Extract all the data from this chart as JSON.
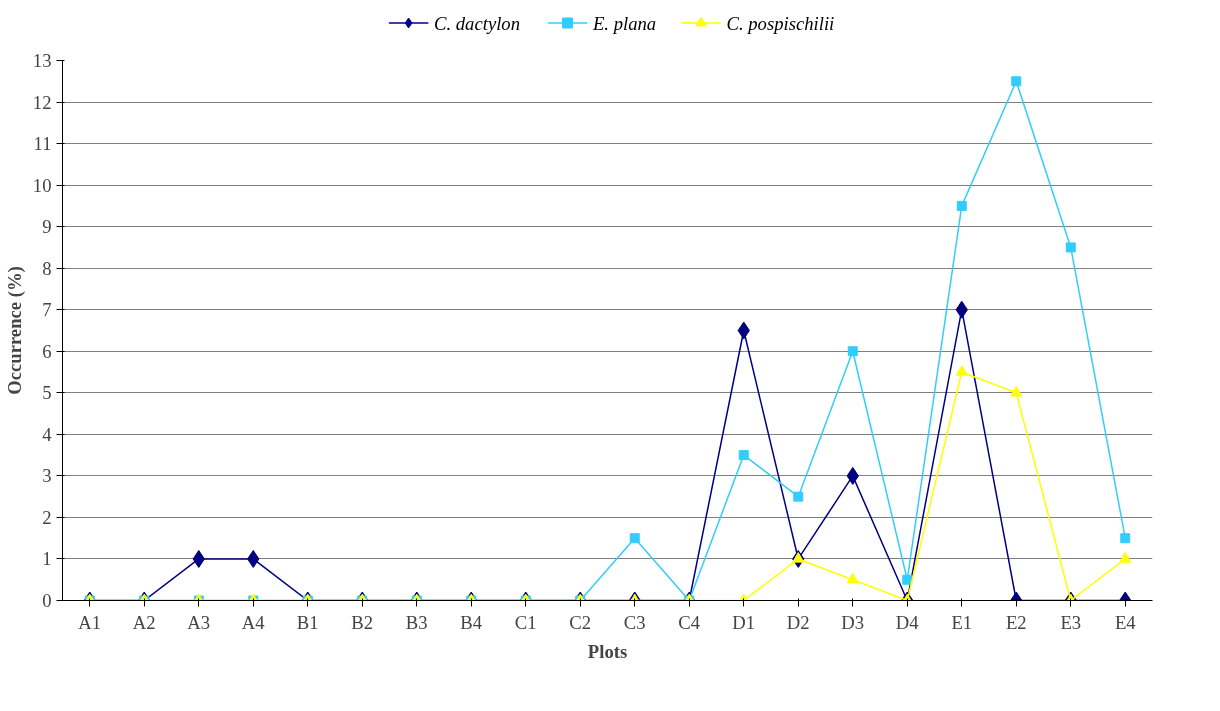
{
  "chart_data": {
    "type": "line",
    "xlabel": "Plots",
    "ylabel": "Occurrence (%)",
    "categories": [
      "A1",
      "A2",
      "A3",
      "A4",
      "B1",
      "B2",
      "B3",
      "B4",
      "C1",
      "C2",
      "C3",
      "C4",
      "D1",
      "D2",
      "D3",
      "D4",
      "E1",
      "E2",
      "E3",
      "E4"
    ],
    "series": [
      {
        "name": "C. dactylon",
        "color": "#000080",
        "marker": "diamond",
        "values": [
          0,
          0,
          1,
          1,
          0,
          0,
          0,
          0,
          0,
          0,
          0,
          0,
          6.5,
          1,
          3,
          0,
          7,
          0,
          0,
          0
        ]
      },
      {
        "name": "E. plana",
        "color": "#33ccff",
        "marker": "square",
        "values": [
          0,
          0,
          0,
          0,
          0,
          0,
          0,
          0,
          0,
          0,
          1.5,
          0,
          3.5,
          2.5,
          6,
          0.5,
          9.5,
          12.5,
          8.5,
          1.5
        ]
      },
      {
        "name": "C. pospischilii",
        "color": "#ffff00",
        "marker": "triangle",
        "values": [
          0,
          0,
          0,
          0,
          0,
          0,
          0,
          0,
          0,
          0,
          0,
          0,
          0,
          1,
          0.5,
          0,
          5.5,
          5,
          0,
          1
        ]
      }
    ],
    "ylim": [
      0,
      13
    ],
    "yticks": [
      0,
      1,
      2,
      3,
      4,
      5,
      6,
      7,
      8,
      9,
      10,
      11,
      12,
      13
    ],
    "grid": "y",
    "legend": "top",
    "line_style": "solid"
  }
}
